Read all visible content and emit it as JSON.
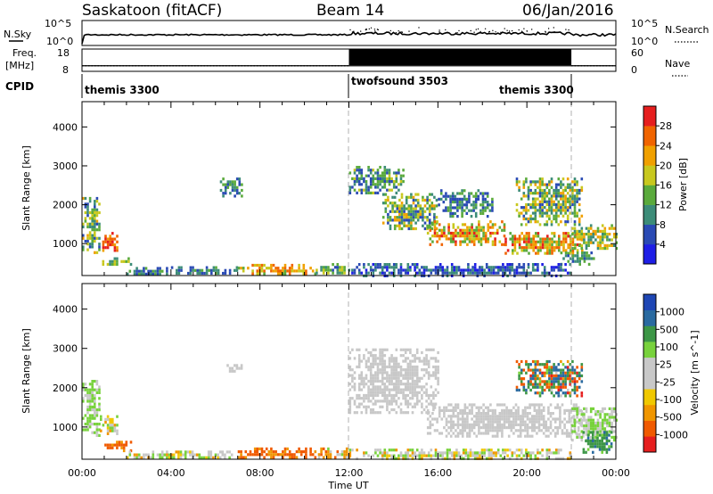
{
  "header": {
    "station": "Saskatoon (fitACF)",
    "beam": "Beam 14",
    "date": "06/Jan/2016"
  },
  "noise_panel": {
    "left_label": "N.Sky",
    "right_label": "N.Search",
    "left_ticks": [
      "10^5",
      "10^0"
    ],
    "right_ticks": [
      "10^5",
      "10^0"
    ]
  },
  "freq_panel": {
    "left_label_1": "Freq.",
    "left_label_2": "[MHz]",
    "right_label": "Nave",
    "left_ticks": [
      "18",
      "8"
    ],
    "right_ticks": [
      "60",
      "0"
    ],
    "freq_mhz": 10.5,
    "nave": [
      {
        "from_h": 0,
        "to_h": 12,
        "value": 15
      },
      {
        "from_h": 12,
        "to_h": 22,
        "value": 60
      },
      {
        "from_h": 22,
        "to_h": 24,
        "value": 15
      }
    ]
  },
  "cpid_panel": {
    "label": "CPID",
    "segments": [
      {
        "name": "themis 3300",
        "start_h": 0,
        "end_h": 12
      },
      {
        "name": "twofsound 3503",
        "start_h": 12,
        "end_h": 22
      },
      {
        "name": "themis 3300",
        "start_h": 22,
        "end_h": 24
      }
    ]
  },
  "colors": {
    "power": [
      "#1e1ee6",
      "#2a4ab4",
      "#3c8c78",
      "#5aaa3c",
      "#c8c81e",
      "#f0a000",
      "#f06400",
      "#e61e1e"
    ],
    "velocity": [
      "#e61e1e",
      "#f05a00",
      "#f09600",
      "#f0c800",
      "#c8c8c8",
      "#c8c8c8",
      "#78d23c",
      "#3c9646",
      "#2a6aa0",
      "#1e46b4"
    ]
  },
  "chart_data": [
    {
      "type": "heatmap",
      "name": "power",
      "xlabel": "",
      "ylabel": "Slant Range [km]",
      "xlim": [
        0,
        24
      ],
      "ylim": [
        180,
        4650
      ],
      "yticks": [
        1000,
        2000,
        3000,
        4000
      ],
      "colorbar": {
        "label": "Power [dB]",
        "ticks": [
          "4",
          "8",
          "12",
          "16",
          "20",
          "24",
          "28"
        ],
        "range": [
          0,
          32
        ]
      },
      "dashed_lines_h": [
        12,
        22
      ],
      "patches": [
        {
          "t": [
            0.0,
            0.8
          ],
          "r": [
            800,
            2200
          ],
          "v": [
            6,
            22
          ]
        },
        {
          "t": [
            0.8,
            1.6
          ],
          "r": [
            850,
            1300
          ],
          "v": [
            22,
            30
          ]
        },
        {
          "t": [
            0.9,
            2.2
          ],
          "r": [
            450,
            650
          ],
          "v": [
            8,
            20
          ]
        },
        {
          "t": [
            2.0,
            4.0
          ],
          "r": [
            220,
            400
          ],
          "v": [
            4,
            14
          ]
        },
        {
          "t": [
            4.0,
            7.0
          ],
          "r": [
            230,
            420
          ],
          "v": [
            4,
            14
          ]
        },
        {
          "t": [
            7.0,
            10.5
          ],
          "r": [
            250,
            480
          ],
          "v": [
            14,
            28
          ]
        },
        {
          "t": [
            10.5,
            12.0
          ],
          "r": [
            250,
            500
          ],
          "v": [
            6,
            18
          ]
        },
        {
          "t": [
            6.2,
            7.2
          ],
          "r": [
            2250,
            2700
          ],
          "v": [
            4,
            16
          ]
        },
        {
          "t": [
            12.0,
            14.5
          ],
          "r": [
            2300,
            3000
          ],
          "v": [
            4,
            18
          ]
        },
        {
          "t": [
            13.5,
            16.0
          ],
          "r": [
            1400,
            2300
          ],
          "v": [
            6,
            22
          ]
        },
        {
          "t": [
            15.5,
            19.0
          ],
          "r": [
            1000,
            1600
          ],
          "v": [
            12,
            30
          ]
        },
        {
          "t": [
            19.0,
            22.5
          ],
          "r": [
            750,
            1300
          ],
          "v": [
            12,
            30
          ]
        },
        {
          "t": [
            22.0,
            24.0
          ],
          "r": [
            900,
            1500
          ],
          "v": [
            8,
            24
          ]
        },
        {
          "t": [
            19.5,
            22.5
          ],
          "r": [
            1500,
            2700
          ],
          "v": [
            6,
            22
          ]
        },
        {
          "t": [
            21.5,
            23.0
          ],
          "r": [
            450,
            800
          ],
          "v": [
            6,
            16
          ]
        },
        {
          "t": [
            12.0,
            22.0
          ],
          "r": [
            200,
            500
          ],
          "v": [
            2,
            12
          ]
        },
        {
          "t": [
            16.0,
            18.5
          ],
          "r": [
            1700,
            2400
          ],
          "v": [
            4,
            14
          ]
        }
      ]
    },
    {
      "type": "heatmap",
      "name": "velocity",
      "xlabel": "Time UT",
      "ylabel": "Slant Range [km]",
      "xlim": [
        0,
        24
      ],
      "ylim": [
        180,
        4650
      ],
      "xticks": [
        "00:00",
        "04:00",
        "08:00",
        "12:00",
        "16:00",
        "20:00",
        "00:00"
      ],
      "yticks": [
        1000,
        2000,
        3000,
        4000
      ],
      "colorbar": {
        "label": "Velocity [m s^-1]",
        "ticks": [
          "1000",
          "500",
          "100",
          "25",
          "-25",
          "-100",
          "-500",
          "-1000"
        ],
        "range": [
          -1000,
          1000
        ]
      },
      "dashed_lines_h": [
        12,
        22
      ],
      "patches": [
        {
          "t": [
            0.0,
            0.8
          ],
          "r": [
            800,
            2200
          ],
          "v": [
            0,
            80
          ]
        },
        {
          "t": [
            0.8,
            1.6
          ],
          "r": [
            850,
            1300
          ],
          "v": [
            -60,
            60
          ]
        },
        {
          "t": [
            0.9,
            2.2
          ],
          "r": [
            400,
            650
          ],
          "v": [
            -200,
            -40
          ]
        },
        {
          "t": [
            2.0,
            7.0
          ],
          "r": [
            220,
            400
          ],
          "v": [
            -60,
            60
          ]
        },
        {
          "t": [
            7.0,
            10.5
          ],
          "r": [
            250,
            480
          ],
          "v": [
            -220,
            -40
          ]
        },
        {
          "t": [
            10.5,
            12.0
          ],
          "r": [
            250,
            480
          ],
          "v": [
            -150,
            40
          ]
        },
        {
          "t": [
            6.5,
            7.2
          ],
          "r": [
            2400,
            2600
          ],
          "v": [
            -20,
            20
          ]
        },
        {
          "t": [
            12.0,
            16.0
          ],
          "r": [
            1400,
            3000
          ],
          "v": [
            -20,
            20
          ]
        },
        {
          "t": [
            15.5,
            22.5
          ],
          "r": [
            750,
            1600
          ],
          "v": [
            -20,
            20
          ]
        },
        {
          "t": [
            22.0,
            24.0
          ],
          "r": [
            700,
            1500
          ],
          "v": [
            -20,
            80
          ]
        },
        {
          "t": [
            19.5,
            22.5
          ],
          "r": [
            1800,
            2700
          ],
          "v": [
            -600,
            800
          ]
        },
        {
          "t": [
            22.5,
            23.8
          ],
          "r": [
            350,
            900
          ],
          "v": [
            60,
            600
          ]
        },
        {
          "t": [
            12.0,
            22.0
          ],
          "r": [
            200,
            450
          ],
          "v": [
            -60,
            60
          ]
        }
      ]
    }
  ]
}
